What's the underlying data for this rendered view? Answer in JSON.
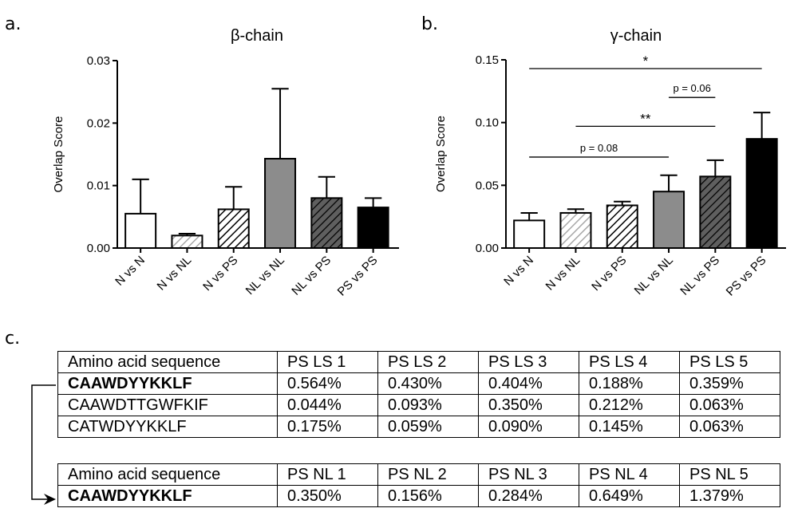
{
  "panels": {
    "a": {
      "label": "a.",
      "chart_data": {
        "type": "bar",
        "title": "β-chain",
        "ylabel": "Overlap Score",
        "xlabel": "",
        "categories": [
          "N vs N",
          "N vs NL",
          "N vs PS",
          "NL vs NL",
          "NL vs PS",
          "PS vs PS"
        ],
        "values": [
          0.0055,
          0.002,
          0.0062,
          0.0143,
          0.008,
          0.0065
        ],
        "errors": [
          0.0055,
          0.0003,
          0.0036,
          0.0112,
          0.0034,
          0.0015
        ],
        "ylim": [
          0,
          0.03
        ],
        "yticks": [
          "0.00",
          "0.01",
          "0.02",
          "0.03"
        ],
        "yticks_values": [
          0,
          0.01,
          0.02,
          0.03
        ],
        "styles": [
          "white",
          "gray-hatch",
          "black-hatch",
          "gray",
          "darkgray-hatch",
          "black"
        ],
        "colors": {
          "gray": "#8c8c8c",
          "darkgray": "#5f5f5f",
          "hatch_gray": "#a8a8a8",
          "black": "#000000"
        },
        "grid": false,
        "annotations": []
      }
    },
    "b": {
      "label": "b.",
      "chart_data": {
        "type": "bar",
        "title": "γ-chain",
        "ylabel": "Overlap Score",
        "xlabel": "",
        "categories": [
          "N vs N",
          "N vs NL",
          "N vs PS",
          "NL vs NL",
          "NL vs PS",
          "PS vs PS"
        ],
        "values": [
          0.022,
          0.028,
          0.034,
          0.045,
          0.057,
          0.087
        ],
        "errors": [
          0.006,
          0.003,
          0.003,
          0.013,
          0.013,
          0.021
        ],
        "ylim": [
          0,
          0.15
        ],
        "yticks": [
          "0.00",
          "0.05",
          "0.10",
          "0.15"
        ],
        "yticks_values": [
          0,
          0.05,
          0.1,
          0.15
        ],
        "styles": [
          "white",
          "gray-hatch",
          "black-hatch",
          "gray",
          "darkgray-hatch",
          "black"
        ],
        "colors": {
          "gray": "#8c8c8c",
          "darkgray": "#5f5f5f",
          "hatch_gray": "#a8a8a8",
          "black": "#000000"
        },
        "grid": false,
        "annotations": [
          {
            "text": "*",
            "from": 0,
            "to": 5,
            "y": 0.143
          },
          {
            "text": "p = 0.06",
            "from": 3,
            "to": 4,
            "y": 0.12
          },
          {
            "text": "**",
            "from": 1,
            "to": 4,
            "y": 0.097
          },
          {
            "text": "p = 0.08",
            "from": 0,
            "to": 3,
            "y": 0.0725
          }
        ]
      }
    },
    "c": {
      "label": "c.",
      "table1": {
        "header": [
          "Amino acid sequence",
          "PS LS 1",
          "PS LS 2",
          "PS LS 3",
          "PS LS 4",
          "PS LS 5"
        ],
        "rows": [
          [
            "CAAWDYYKKLF",
            "0.564%",
            "0.430%",
            "0.404%",
            "0.188%",
            "0.359%"
          ],
          [
            "CAAWDTTGWFKIF",
            "0.044%",
            "0.093%",
            "0.350%",
            "0.212%",
            "0.063%"
          ],
          [
            "CATWDYYKKLF",
            "0.175%",
            "0.059%",
            "0.090%",
            "0.145%",
            "0.063%"
          ]
        ]
      },
      "table2": {
        "header": [
          "Amino acid sequence",
          "PS NL 1",
          "PS NL 2",
          "PS NL 3",
          "PS NL 4",
          "PS NL 5"
        ],
        "rows": [
          [
            "CAAWDYYKKLF",
            "0.350%",
            "0.156%",
            "0.284%",
            "0.649%",
            "1.379%"
          ]
        ]
      }
    }
  }
}
